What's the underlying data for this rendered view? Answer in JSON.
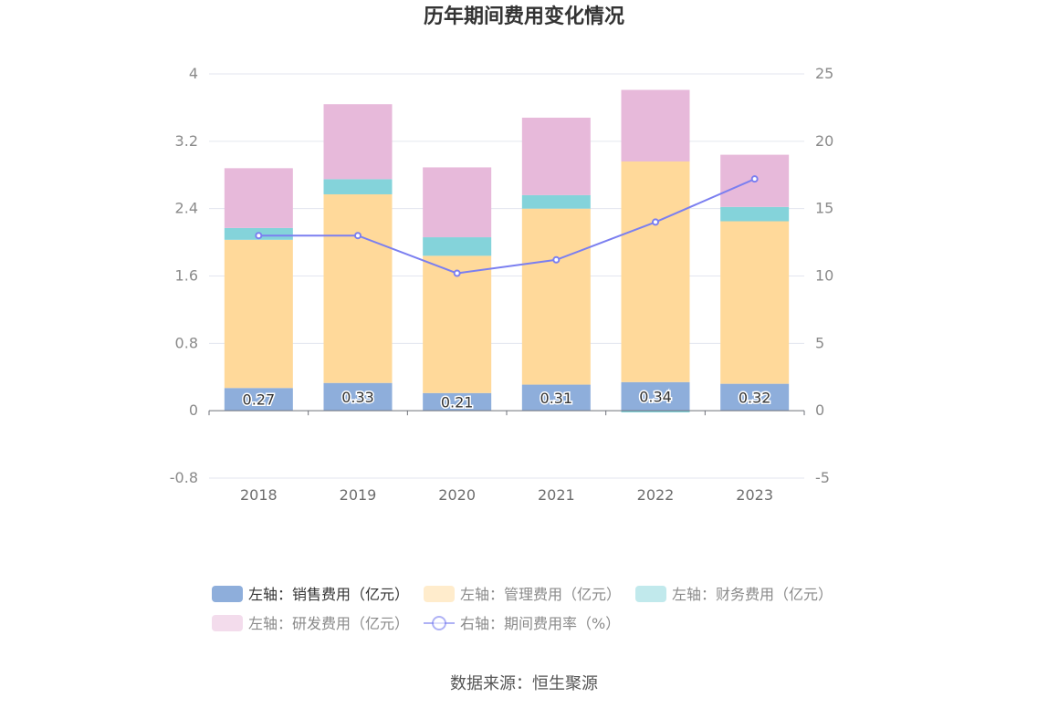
{
  "chart_data": {
    "type": "bar",
    "title": "历年期间费用变化情况",
    "source": "数据来源：恒生聚源",
    "categories": [
      "2018",
      "2019",
      "2020",
      "2021",
      "2022",
      "2023"
    ],
    "left_axis": {
      "min": -0.8,
      "max": 4,
      "ticks": [
        "-0.8",
        "0",
        "0.8",
        "1.6",
        "2.4",
        "3.2",
        "4"
      ]
    },
    "right_axis": {
      "min": -5,
      "max": 25,
      "ticks": [
        "-5",
        "0",
        "5",
        "10",
        "15",
        "20",
        "25"
      ]
    },
    "series": [
      {
        "name": "左轴：销售费用（亿元）",
        "kind": "bar",
        "color": "#8eaedb",
        "values": [
          0.27,
          0.33,
          0.21,
          0.31,
          0.34,
          0.32
        ],
        "labels": [
          "0.27",
          "0.33",
          "0.21",
          "0.31",
          "0.34",
          "0.32"
        ]
      },
      {
        "name": "左轴：管理费用（亿元）",
        "kind": "bar",
        "color": "#ffd99a",
        "values": [
          1.76,
          2.24,
          1.63,
          2.09,
          2.62,
          1.93
        ]
      },
      {
        "name": "左轴：财务费用（亿元）",
        "kind": "bar",
        "color": "#84d3da",
        "values": [
          0.14,
          0.18,
          0.22,
          0.16,
          -0.02,
          0.17
        ]
      },
      {
        "name": "左轴：研发费用（亿元）",
        "kind": "bar",
        "color": "#e7b9da",
        "values": [
          0.71,
          0.89,
          0.83,
          0.92,
          0.85,
          0.62
        ]
      },
      {
        "name": "右轴：期间费用率（%）",
        "kind": "line",
        "color": "#7b7ff0",
        "values": [
          13.0,
          13.0,
          10.2,
          11.2,
          14.0,
          17.2
        ]
      }
    ]
  }
}
